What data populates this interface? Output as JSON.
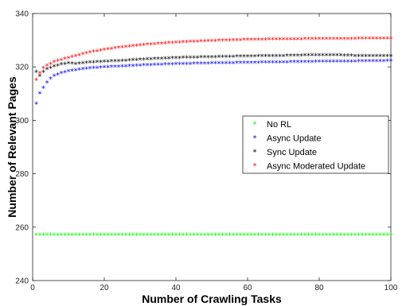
{
  "chart_data": {
    "type": "scatter",
    "xlabel": "Number of Crawling Tasks",
    "ylabel": "Number of Relevant Pages",
    "xlim": [
      0,
      100
    ],
    "ylim": [
      240,
      340
    ],
    "xticks": [
      0,
      20,
      40,
      60,
      80,
      100
    ],
    "yticks": [
      240,
      260,
      280,
      300,
      320,
      340
    ],
    "grid": false,
    "legend_position": "right",
    "marker": "*",
    "series": [
      {
        "name": "No RL",
        "color": "#00ff00",
        "x_start": 1,
        "x_end": 100,
        "y_points": [
          [
            1,
            257
          ],
          [
            100,
            257
          ]
        ]
      },
      {
        "name": "Async Update",
        "color": "#0000ff",
        "x_start": 1,
        "x_end": 100,
        "y_points": [
          [
            1,
            306
          ],
          [
            2,
            310
          ],
          [
            3,
            312
          ],
          [
            4,
            314
          ],
          [
            5,
            315.5
          ],
          [
            6,
            316.5
          ],
          [
            8,
            317.5
          ],
          [
            10,
            318.2
          ],
          [
            15,
            319.2
          ],
          [
            20,
            319.7
          ],
          [
            30,
            320.4
          ],
          [
            40,
            320.9
          ],
          [
            50,
            321.2
          ],
          [
            60,
            321.4
          ],
          [
            70,
            321.6
          ],
          [
            80,
            321.8
          ],
          [
            90,
            321.9
          ],
          [
            100,
            322.1
          ]
        ]
      },
      {
        "name": "Sync Update",
        "color": "#000000",
        "x_start": 1,
        "x_end": 100,
        "y_points": [
          [
            1,
            318
          ],
          [
            2,
            316.5
          ],
          [
            3,
            318
          ],
          [
            4,
            319
          ],
          [
            5,
            319.5
          ],
          [
            6,
            320
          ],
          [
            8,
            320.8
          ],
          [
            10,
            321.2
          ],
          [
            12,
            321
          ],
          [
            15,
            321.4
          ],
          [
            20,
            321.8
          ],
          [
            25,
            322.1
          ],
          [
            30,
            322.6
          ],
          [
            35,
            322.9
          ],
          [
            40,
            323.2
          ],
          [
            50,
            323.5
          ],
          [
            60,
            323.8
          ],
          [
            70,
            324
          ],
          [
            80,
            324.3
          ],
          [
            85,
            324.2
          ],
          [
            90,
            324
          ],
          [
            100,
            324
          ]
        ]
      },
      {
        "name": "Async Moderated Update",
        "color": "#ff0000",
        "x_start": 1,
        "x_end": 100,
        "y_points": [
          [
            1,
            315
          ],
          [
            2,
            317.5
          ],
          [
            3,
            319.5
          ],
          [
            4,
            320.3
          ],
          [
            5,
            321
          ],
          [
            6,
            321.7
          ],
          [
            8,
            322.5
          ],
          [
            10,
            323.2
          ],
          [
            15,
            325
          ],
          [
            20,
            326.3
          ],
          [
            25,
            327.2
          ],
          [
            30,
            328
          ],
          [
            40,
            329
          ],
          [
            50,
            329.6
          ],
          [
            60,
            330
          ],
          [
            70,
            330.2
          ],
          [
            80,
            330.3
          ],
          [
            90,
            330.4
          ],
          [
            100,
            330.5
          ]
        ]
      }
    ]
  }
}
